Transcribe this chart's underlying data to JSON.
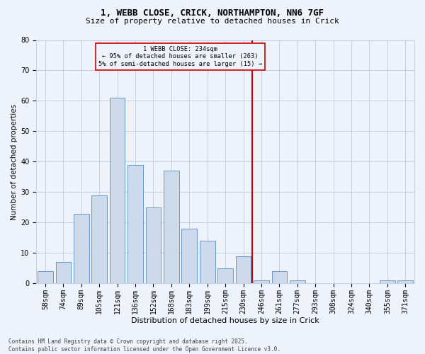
{
  "title1": "1, WEBB CLOSE, CRICK, NORTHAMPTON, NN6 7GF",
  "title2": "Size of property relative to detached houses in Crick",
  "xlabel": "Distribution of detached houses by size in Crick",
  "ylabel": "Number of detached properties",
  "categories": [
    "58sqm",
    "74sqm",
    "89sqm",
    "105sqm",
    "121sqm",
    "136sqm",
    "152sqm",
    "168sqm",
    "183sqm",
    "199sqm",
    "215sqm",
    "230sqm",
    "246sqm",
    "261sqm",
    "277sqm",
    "293sqm",
    "308sqm",
    "324sqm",
    "340sqm",
    "355sqm",
    "371sqm"
  ],
  "values": [
    4,
    7,
    23,
    29,
    61,
    39,
    25,
    37,
    18,
    14,
    5,
    9,
    1,
    4,
    1,
    0,
    0,
    0,
    0,
    1,
    1
  ],
  "bar_color": "#ccdaeb",
  "bar_edge_color": "#6699cc",
  "vline_x_index": 11.5,
  "vline_color": "#cc0000",
  "ylim": [
    0,
    80
  ],
  "yticks": [
    0,
    10,
    20,
    30,
    40,
    50,
    60,
    70,
    80
  ],
  "annotation_text": "1 WEBB CLOSE: 234sqm\n← 95% of detached houses are smaller (263)\n5% of semi-detached houses are larger (15) →",
  "annotation_box_color": "#cc0000",
  "footer": "Contains HM Land Registry data © Crown copyright and database right 2025.\nContains public sector information licensed under the Open Government Licence v3.0.",
  "bg_color": "#eef2fa",
  "grid_color": "#c5cede",
  "title_fontsize": 9,
  "subtitle_fontsize": 8,
  "xlabel_fontsize": 8,
  "ylabel_fontsize": 7.5,
  "tick_fontsize": 7,
  "footer_fontsize": 5.5
}
